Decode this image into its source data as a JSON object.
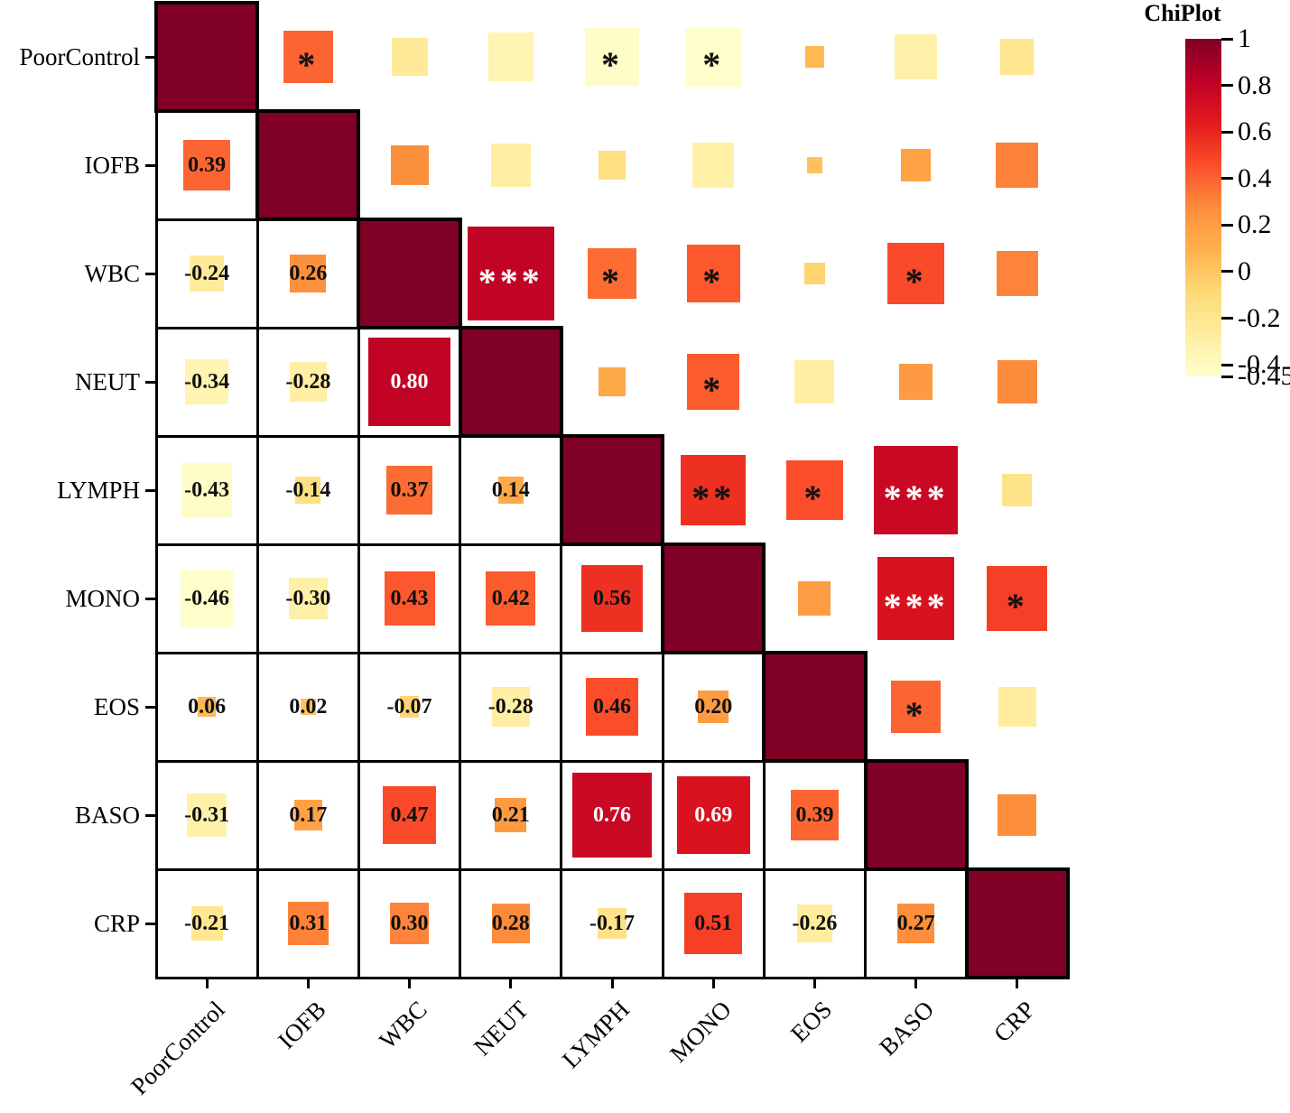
{
  "chart_data": {
    "type": "heatmap",
    "variant": "correlation-matrix",
    "title": "ChiPlot",
    "variables": [
      "PoorControl",
      "IOFB",
      "WBC",
      "NEUT",
      "LYMPH",
      "MONO",
      "EOS",
      "BASO",
      "CRP"
    ],
    "diagonal_value": 1,
    "lower_triangle_values": [
      [],
      [
        0.39
      ],
      [
        -0.24,
        0.26
      ],
      [
        -0.34,
        -0.28,
        0.8
      ],
      [
        -0.43,
        -0.14,
        0.37,
        0.14
      ],
      [
        -0.46,
        -0.3,
        0.43,
        0.42,
        0.56
      ],
      [
        0.06,
        0.02,
        -0.07,
        -0.28,
        0.46,
        0.2
      ],
      [
        -0.31,
        0.17,
        0.47,
        0.21,
        0.76,
        0.69,
        0.39
      ],
      [
        -0.21,
        0.31,
        0.3,
        0.28,
        -0.17,
        0.51,
        -0.26,
        0.27
      ]
    ],
    "significance_stars": [
      [],
      [
        "*"
      ],
      [
        "",
        ""
      ],
      [
        "",
        "",
        "***"
      ],
      [
        "*",
        "",
        "*",
        ""
      ],
      [
        "*",
        "",
        "*",
        "*",
        "**"
      ],
      [
        "",
        "",
        "",
        "",
        "*",
        ""
      ],
      [
        "",
        "",
        "*",
        "",
        "***",
        "***",
        "*"
      ],
      [
        "",
        "",
        "",
        "",
        "",
        "*",
        "",
        ""
      ]
    ],
    "colorbar": {
      "title": "ChiPlot",
      "domain": [
        -0.45,
        1
      ],
      "tick_values": [
        1,
        0.8,
        0.6,
        0.4,
        0.2,
        0,
        -0.2,
        -0.4,
        -0.45
      ],
      "tick_labels": [
        "1",
        "0.8",
        "0.6",
        "0.4",
        "0.2",
        "0",
        "-0.2",
        "-0.4",
        "-0.45"
      ]
    },
    "colormap": {
      "name": "YlOrRd",
      "anchors": [
        "#ffffcc",
        "#ffeda0",
        "#fed976",
        "#feb24c",
        "#fd8d3c",
        "#fc4e2a",
        "#e31a1c",
        "#bd0026",
        "#800026"
      ]
    },
    "style": {
      "grid_line_color": "#000000",
      "cell_background": "#ffffff",
      "value_text_dark": "#111111",
      "value_text_light": "#ffffff"
    }
  }
}
